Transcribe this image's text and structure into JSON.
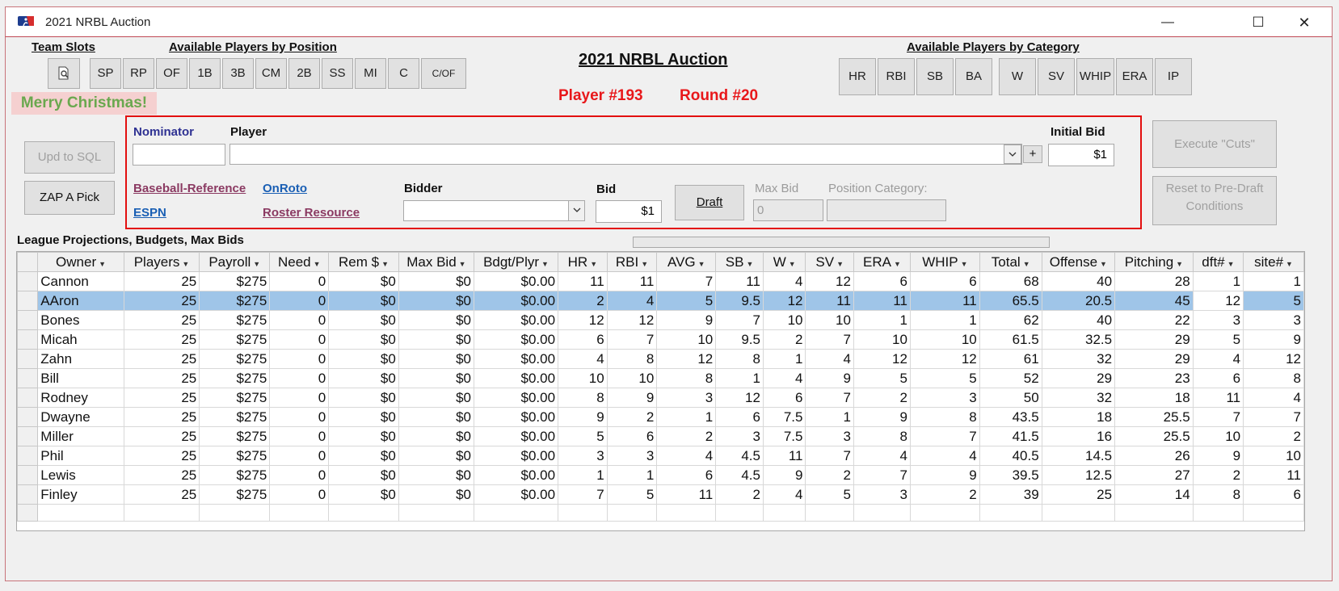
{
  "window": {
    "title": "2021 NRBL Auction",
    "minimize": "—",
    "maximize": "☐",
    "close": "✕"
  },
  "labels": {
    "team_slots": "Team Slots",
    "by_position": "Available Players by Position",
    "by_category": "Available Players by Category",
    "xmas": "Merry Christmas!",
    "main_title": "2021 NRBL Auction",
    "player_num": "Player #193",
    "round_num": "Round #20",
    "league_proj": "League Projections, Budgets, Max Bids"
  },
  "position_buttons": [
    "SP",
    "RP",
    "OF",
    "1B",
    "3B",
    "CM",
    "2B",
    "SS",
    "MI",
    "C",
    "C/OF"
  ],
  "category_buttons": [
    "HR",
    "RBI",
    "SB",
    "BA",
    "W",
    "SV",
    "WHIP",
    "ERA",
    "IP"
  ],
  "form": {
    "nominator_label": "Nominator",
    "nominator_value": "",
    "player_label": "Player",
    "player_value": "",
    "plus": "+",
    "initial_bid_label": "Initial Bid",
    "initial_bid_value": "$1",
    "links": {
      "bbref": "Baseball-Reference",
      "onroto": "OnRoto",
      "espn": "ESPN",
      "roster": "Roster Resource"
    },
    "bidder_label": "Bidder",
    "bidder_value": "",
    "bid_label": "Bid",
    "bid_value": "$1",
    "draft_label": "Draft",
    "max_bid_label": "Max Bid",
    "max_bid_value": "0",
    "pos_cat_label": "Position Category:",
    "pos_cat_value": ""
  },
  "side_buttons": {
    "upd_sql": "Upd to SQL",
    "zap": "ZAP A Pick",
    "execute_cuts": "Execute \"Cuts\"",
    "reset": "Reset to Pre-Draft Conditions"
  },
  "table": {
    "columns": [
      "Owner",
      "Players",
      "Payroll",
      "Need",
      "Rem $",
      "Max Bid",
      "Bdgt/Plyr",
      "HR",
      "RBI",
      "AVG",
      "SB",
      "W",
      "SV",
      "ERA",
      "WHIP",
      "Total",
      "Offense",
      "Pitching",
      "dft#",
      "site#"
    ],
    "rows": [
      [
        "Cannon",
        "25",
        "$275",
        "0",
        "$0",
        "$0",
        "$0.00",
        "11",
        "11",
        "7",
        "11",
        "4",
        "12",
        "6",
        "6",
        "68",
        "40",
        "28",
        "1",
        "1"
      ],
      [
        "AAron",
        "25",
        "$275",
        "0",
        "$0",
        "$0",
        "$0.00",
        "2",
        "4",
        "5",
        "9.5",
        "12",
        "11",
        "11",
        "11",
        "65.5",
        "20.5",
        "45",
        "12",
        "5"
      ],
      [
        "Bones",
        "25",
        "$275",
        "0",
        "$0",
        "$0",
        "$0.00",
        "12",
        "12",
        "9",
        "7",
        "10",
        "10",
        "1",
        "1",
        "62",
        "40",
        "22",
        "3",
        "3"
      ],
      [
        "Micah",
        "25",
        "$275",
        "0",
        "$0",
        "$0",
        "$0.00",
        "6",
        "7",
        "10",
        "9.5",
        "2",
        "7",
        "10",
        "10",
        "61.5",
        "32.5",
        "29",
        "5",
        "9"
      ],
      [
        "Zahn",
        "25",
        "$275",
        "0",
        "$0",
        "$0",
        "$0.00",
        "4",
        "8",
        "12",
        "8",
        "1",
        "4",
        "12",
        "12",
        "61",
        "32",
        "29",
        "4",
        "12"
      ],
      [
        "Bill",
        "25",
        "$275",
        "0",
        "$0",
        "$0",
        "$0.00",
        "10",
        "10",
        "8",
        "1",
        "4",
        "9",
        "5",
        "5",
        "52",
        "29",
        "23",
        "6",
        "8"
      ],
      [
        "Rodney",
        "25",
        "$275",
        "0",
        "$0",
        "$0",
        "$0.00",
        "8",
        "9",
        "3",
        "12",
        "6",
        "7",
        "2",
        "3",
        "50",
        "32",
        "18",
        "11",
        "4"
      ],
      [
        "Dwayne",
        "25",
        "$275",
        "0",
        "$0",
        "$0",
        "$0.00",
        "9",
        "2",
        "1",
        "6",
        "7.5",
        "1",
        "9",
        "8",
        "43.5",
        "18",
        "25.5",
        "7",
        "7"
      ],
      [
        "Miller",
        "25",
        "$275",
        "0",
        "$0",
        "$0",
        "$0.00",
        "5",
        "6",
        "2",
        "3",
        "7.5",
        "3",
        "8",
        "7",
        "41.5",
        "16",
        "25.5",
        "10",
        "2"
      ],
      [
        "Phil",
        "25",
        "$275",
        "0",
        "$0",
        "$0",
        "$0.00",
        "3",
        "3",
        "4",
        "4.5",
        "11",
        "7",
        "4",
        "4",
        "40.5",
        "14.5",
        "26",
        "9",
        "10"
      ],
      [
        "Lewis",
        "25",
        "$275",
        "0",
        "$0",
        "$0",
        "$0.00",
        "1",
        "1",
        "6",
        "4.5",
        "9",
        "2",
        "7",
        "9",
        "39.5",
        "12.5",
        "27",
        "2",
        "11"
      ],
      [
        "Finley",
        "25",
        "$275",
        "0",
        "$0",
        "$0",
        "$0.00",
        "7",
        "5",
        "11",
        "2",
        "4",
        "5",
        "3",
        "2",
        "39",
        "25",
        "14",
        "8",
        "6"
      ]
    ],
    "highlight_row": 1
  },
  "colors": {
    "accent_red": "#e8171a",
    "highlight": "#9fc5e8",
    "xmas_green": "#6aa84f"
  }
}
